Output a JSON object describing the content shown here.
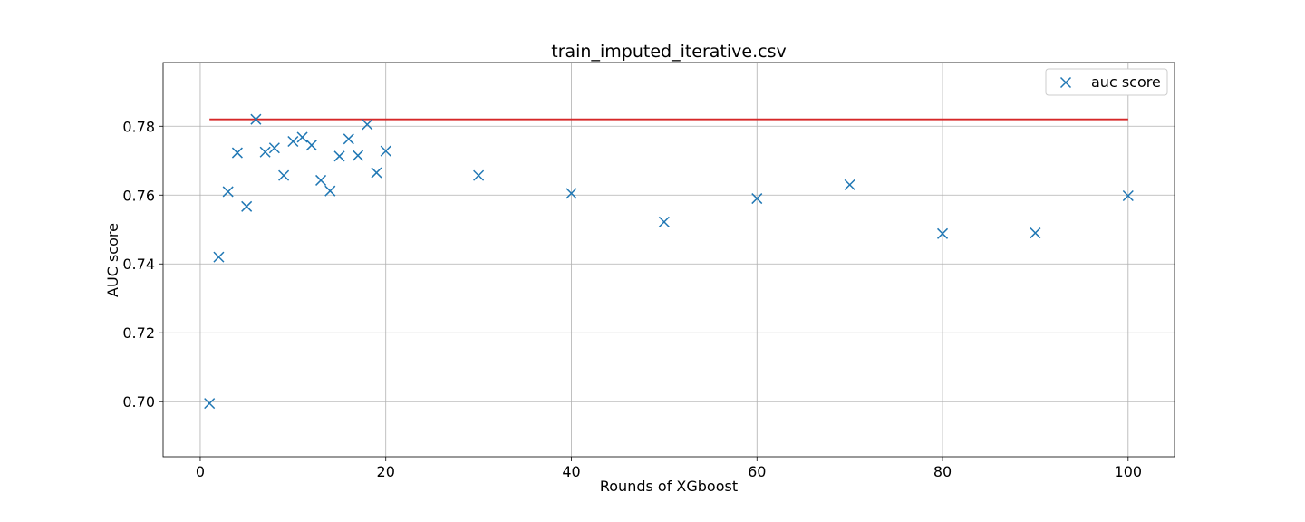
{
  "chart_data": {
    "type": "scatter",
    "title": "train_imputed_iterative.csv",
    "xlabel": "Rounds of XGboost",
    "ylabel": "AUC score",
    "xlim": [
      -4,
      105
    ],
    "ylim": [
      0.684,
      0.7985
    ],
    "xticks": [
      0,
      20,
      40,
      60,
      80,
      100
    ],
    "xtick_labels": [
      "0",
      "20",
      "40",
      "60",
      "80",
      "100"
    ],
    "yticks": [
      0.7,
      0.72,
      0.74,
      0.76,
      0.78
    ],
    "ytick_labels": [
      "0.70",
      "0.72",
      "0.74",
      "0.76",
      "0.78"
    ],
    "grid": true,
    "legend_position": "top-right",
    "series": [
      {
        "name": "auc score",
        "marker": "x",
        "color": "#1f77b4",
        "x": [
          1,
          2,
          3,
          4,
          5,
          6,
          7,
          8,
          9,
          10,
          11,
          12,
          13,
          14,
          15,
          16,
          17,
          18,
          19,
          20,
          30,
          40,
          50,
          60,
          70,
          80,
          90,
          100
        ],
        "y": [
          0.6995,
          0.742,
          0.761,
          0.7723,
          0.7567,
          0.782,
          0.7725,
          0.7737,
          0.7657,
          0.7756,
          0.7768,
          0.7745,
          0.7643,
          0.7612,
          0.7713,
          0.7763,
          0.7715,
          0.7805,
          0.7665,
          0.7728,
          0.7657,
          0.7605,
          0.7522,
          0.759,
          0.763,
          0.7488,
          0.749,
          0.7598
        ]
      }
    ],
    "reference_line": {
      "color": "#d62728",
      "y": 0.782,
      "x_start": 1,
      "x_end": 100
    }
  }
}
